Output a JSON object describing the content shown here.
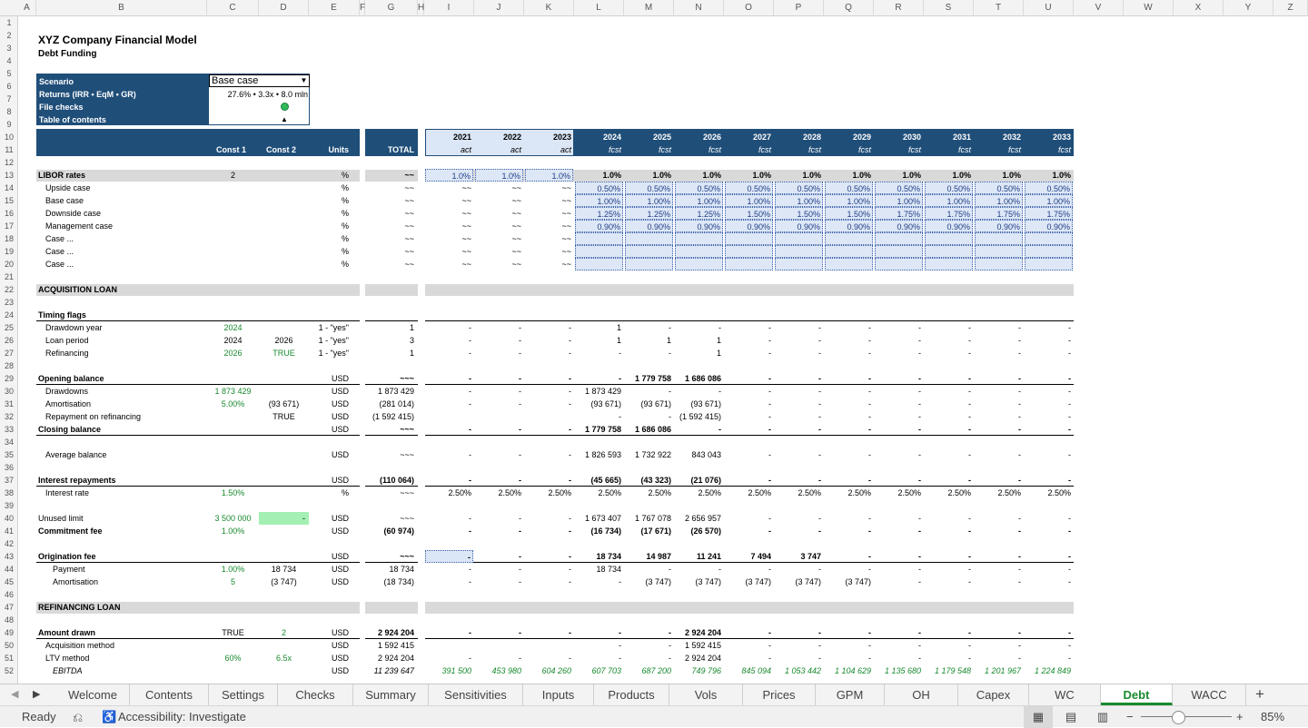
{
  "columns": [
    "A",
    "B",
    "C",
    "D",
    "E",
    "F",
    "G",
    "H",
    "I",
    "J",
    "K",
    "L",
    "M",
    "N",
    "O",
    "P",
    "Q",
    "R",
    "S",
    "T",
    "U",
    "V",
    "W",
    "X",
    "Y",
    "Z"
  ],
  "title": "XYZ Company Financial Model",
  "subtitle": "Debt Funding",
  "panel": {
    "scenario_label": "Scenario",
    "scenario_value": "Base case",
    "returns_label": "Returns (IRR • EqM • GR)",
    "returns_value": "27.6% • 3.3x • 8.0 mln",
    "checks_label": "File checks",
    "toc_label": "Table of contents",
    "toc_glyph": "▲"
  },
  "header": {
    "const1": "Const 1",
    "const2": "Const 2",
    "units": "Units",
    "total": "TOTAL",
    "years": [
      "2021",
      "2022",
      "2023",
      "2024",
      "2025",
      "2026",
      "2027",
      "2028",
      "2029",
      "2030",
      "2031",
      "2032",
      "2033"
    ],
    "phases": [
      "act",
      "act",
      "act",
      "fcst",
      "fcst",
      "fcst",
      "fcst",
      "fcst",
      "fcst",
      "fcst",
      "fcst",
      "fcst",
      "fcst"
    ]
  },
  "rows": [
    {
      "r": 13,
      "label": "LIBOR rates",
      "bold": true,
      "gray": true,
      "C": "2",
      "E": "%",
      "G": "~~",
      "vals": [
        "1.0%",
        "1.0%",
        "1.0%",
        "1.0%",
        "1.0%",
        "1.0%",
        "1.0%",
        "1.0%",
        "1.0%",
        "1.0%",
        "1.0%",
        "1.0%",
        "1.0%"
      ],
      "dotIdx": [
        0,
        1,
        2
      ]
    },
    {
      "r": 14,
      "label": "Upside case",
      "indent": 1,
      "E": "%",
      "G": "~~",
      "vals": [
        "~~",
        "~~",
        "~~",
        "0.50%",
        "0.50%",
        "0.50%",
        "0.50%",
        "0.50%",
        "0.50%",
        "0.50%",
        "0.50%",
        "0.50%",
        "0.50%"
      ],
      "dotFrom": 3
    },
    {
      "r": 15,
      "label": "Base case",
      "indent": 1,
      "E": "%",
      "G": "~~",
      "vals": [
        "~~",
        "~~",
        "~~",
        "1.00%",
        "1.00%",
        "1.00%",
        "1.00%",
        "1.00%",
        "1.00%",
        "1.00%",
        "1.00%",
        "1.00%",
        "1.00%"
      ],
      "dotFrom": 3
    },
    {
      "r": 16,
      "label": "Downside case",
      "indent": 1,
      "E": "%",
      "G": "~~",
      "vals": [
        "~~",
        "~~",
        "~~",
        "1.25%",
        "1.25%",
        "1.25%",
        "1.50%",
        "1.50%",
        "1.50%",
        "1.75%",
        "1.75%",
        "1.75%",
        "1.75%"
      ],
      "dotFrom": 3
    },
    {
      "r": 17,
      "label": "Management case",
      "indent": 1,
      "E": "%",
      "G": "~~",
      "vals": [
        "~~",
        "~~",
        "~~",
        "0.90%",
        "0.90%",
        "0.90%",
        "0.90%",
        "0.90%",
        "0.90%",
        "0.90%",
        "0.90%",
        "0.90%",
        "0.90%"
      ],
      "dotFrom": 3
    },
    {
      "r": 18,
      "label": "Case ...",
      "indent": 1,
      "E": "%",
      "G": "~~",
      "vals": [
        "~~",
        "~~",
        "~~",
        "",
        "",
        "",
        "",
        "",
        "",
        "",
        "",
        "",
        ""
      ],
      "dotFrom": 3
    },
    {
      "r": 19,
      "label": "Case ...",
      "indent": 1,
      "E": "%",
      "G": "~~",
      "vals": [
        "~~",
        "~~",
        "~~",
        "",
        "",
        "",
        "",
        "",
        "",
        "",
        "",
        "",
        ""
      ],
      "dotFrom": 3
    },
    {
      "r": 20,
      "label": "Case ...",
      "indent": 1,
      "E": "%",
      "G": "~~",
      "vals": [
        "~~",
        "~~",
        "~~",
        "",
        "",
        "",
        "",
        "",
        "",
        "",
        "",
        "",
        ""
      ],
      "dotFrom": 3
    },
    {
      "r": 22,
      "label": "ACQUISITION LOAN",
      "bold": true,
      "section": true
    },
    {
      "r": 24,
      "label": "Timing flags",
      "bold": true,
      "topline": true
    },
    {
      "r": 25,
      "label": "Drawdown year",
      "indent": 1,
      "C": "2024",
      "Cg": true,
      "E": "1 - \"yes\"",
      "G": "1",
      "vals": [
        "-",
        "-",
        "-",
        "1",
        "-",
        "-",
        "-",
        "-",
        "-",
        "-",
        "-",
        "-",
        "-"
      ]
    },
    {
      "r": 26,
      "label": "Loan period",
      "indent": 1,
      "C": "2024",
      "D": "2026",
      "E": "1 - \"yes\"",
      "G": "3",
      "vals": [
        "-",
        "-",
        "-",
        "1",
        "1",
        "1",
        "-",
        "-",
        "-",
        "-",
        "-",
        "-",
        "-"
      ]
    },
    {
      "r": 27,
      "label": "Refinancing",
      "indent": 1,
      "C": "2026",
      "Cg": true,
      "D": "TRUE",
      "Dg": true,
      "E": "1 - \"yes\"",
      "G": "1",
      "vals": [
        "-",
        "-",
        "-",
        "-",
        "-",
        "1",
        "-",
        "-",
        "-",
        "-",
        "-",
        "-",
        "-"
      ]
    },
    {
      "r": 29,
      "label": "Opening balance",
      "bold": true,
      "topline": true,
      "E": "USD",
      "G": "~~~",
      "vals": [
        "-",
        "-",
        "-",
        "-",
        "1 779 758",
        "1 686 086",
        "-",
        "-",
        "-",
        "-",
        "-",
        "-",
        "-"
      ]
    },
    {
      "r": 30,
      "label": "Drawdowns",
      "indent": 1,
      "C": "1 873 429",
      "Cg": true,
      "E": "USD",
      "G": "1 873 429",
      "vals": [
        "-",
        "-",
        "-",
        "1 873 429",
        "-",
        "-",
        "-",
        "-",
        "-",
        "-",
        "-",
        "-",
        "-"
      ]
    },
    {
      "r": 31,
      "label": "Amortisation",
      "indent": 1,
      "C": "5.00%",
      "Cg": true,
      "D": "(93 671)",
      "E": "USD",
      "G": "(281 014)",
      "vals": [
        "-",
        "-",
        "-",
        "(93 671)",
        "(93 671)",
        "(93 671)",
        "-",
        "-",
        "-",
        "-",
        "-",
        "-",
        "-"
      ]
    },
    {
      "r": 32,
      "label": "Repayment on refinancing",
      "indent": 1,
      "D": "TRUE",
      "E": "USD",
      "G": "(1 592 415)",
      "vals": [
        "",
        "",
        "",
        "-",
        "-",
        "(1 592 415)",
        "-",
        "-",
        "-",
        "-",
        "-",
        "-",
        "-"
      ]
    },
    {
      "r": 33,
      "label": "Closing balance",
      "bold": true,
      "topline": true,
      "E": "USD",
      "G": "~~~",
      "vals": [
        "-",
        "-",
        "-",
        "1 779 758",
        "1 686 086",
        "-",
        "-",
        "-",
        "-",
        "-",
        "-",
        "-",
        "-"
      ]
    },
    {
      "r": 35,
      "label": "Average balance",
      "indent": 1,
      "E": "USD",
      "G": "~~~",
      "vals": [
        "-",
        "-",
        "-",
        "1 826 593",
        "1 732 922",
        "843 043",
        "-",
        "-",
        "-",
        "-",
        "-",
        "-",
        "-"
      ]
    },
    {
      "r": 37,
      "label": "Interest repayments",
      "bold": true,
      "topline": true,
      "E": "USD",
      "G": "(110 064)",
      "vals": [
        "-",
        "-",
        "-",
        "(45 665)",
        "(43 323)",
        "(21 076)",
        "-",
        "-",
        "-",
        "-",
        "-",
        "-",
        "-"
      ]
    },
    {
      "r": 38,
      "label": "Interest rate",
      "indent": 1,
      "C": "1.50%",
      "Cg": true,
      "E": "%",
      "G": "~~~",
      "vals": [
        "2.50%",
        "2.50%",
        "2.50%",
        "2.50%",
        "2.50%",
        "2.50%",
        "2.50%",
        "2.50%",
        "2.50%",
        "2.50%",
        "2.50%",
        "2.50%",
        "2.50%"
      ]
    },
    {
      "r": 40,
      "label": "Unused limit",
      "C": "3 500 000",
      "Cg": true,
      "D": "-",
      "Dbox": true,
      "E": "USD",
      "G": "~~~",
      "vals": [
        "-",
        "-",
        "-",
        "1 673 407",
        "1 767 078",
        "2 656 957",
        "-",
        "-",
        "-",
        "-",
        "-",
        "-",
        "-"
      ]
    },
    {
      "r": 41,
      "label": "Commitment fee",
      "bold": true,
      "C": "1.00%",
      "Cg": true,
      "E": "USD",
      "G": "(60 974)",
      "vals": [
        "-",
        "-",
        "-",
        "(16 734)",
        "(17 671)",
        "(26 570)",
        "-",
        "-",
        "-",
        "-",
        "-",
        "-",
        "-"
      ]
    },
    {
      "r": 43,
      "label": "Origination fee",
      "bold": true,
      "topline": true,
      "E": "USD",
      "G": "~~~",
      "vals": [
        "-",
        "-",
        "-",
        "18 734",
        "14 987",
        "11 241",
        "7 494",
        "3 747",
        "-",
        "-",
        "-",
        "-",
        "-"
      ],
      "sel": 0
    },
    {
      "r": 44,
      "label": "Payment",
      "indent": 2,
      "C": "1.00%",
      "Cg": true,
      "D": "18 734",
      "E": "USD",
      "G": "18 734",
      "vals": [
        "-",
        "-",
        "-",
        "18 734",
        "-",
        "-",
        "-",
        "-",
        "-",
        "-",
        "-",
        "-",
        "-"
      ]
    },
    {
      "r": 45,
      "label": "Amortisation",
      "indent": 2,
      "C": "5",
      "Cg": true,
      "D": "(3 747)",
      "E": "USD",
      "G": "(18 734)",
      "vals": [
        "-",
        "-",
        "-",
        "-",
        "(3 747)",
        "(3 747)",
        "(3 747)",
        "(3 747)",
        "(3 747)",
        "-",
        "-",
        "-",
        "-"
      ]
    },
    {
      "r": 47,
      "label": "REFINANCING LOAN",
      "bold": true,
      "section": true
    },
    {
      "r": 49,
      "label": "Amount drawn",
      "bold": true,
      "topline": true,
      "C": "TRUE",
      "D": "2",
      "Dg": true,
      "E": "USD",
      "G": "2 924 204",
      "vals": [
        "-",
        "-",
        "-",
        "-",
        "-",
        "2 924 204",
        "-",
        "-",
        "-",
        "-",
        "-",
        "-",
        "-"
      ]
    },
    {
      "r": 50,
      "label": "Acquisition method",
      "indent": 1,
      "E": "USD",
      "G": "1 592 415",
      "vals": [
        "",
        "",
        "",
        "-",
        "-",
        "1 592 415",
        "-",
        "-",
        "-",
        "-",
        "-",
        "-",
        "-"
      ]
    },
    {
      "r": 51,
      "label": "LTV method",
      "indent": 1,
      "C": "60%",
      "Cg": true,
      "D": "6.5x",
      "Dg": true,
      "E": "USD",
      "G": "2 924 204",
      "vals": [
        "-",
        "-",
        "-",
        "-",
        "-",
        "2 924 204",
        "-",
        "-",
        "-",
        "-",
        "-",
        "-",
        "-"
      ]
    },
    {
      "r": 52,
      "label": "EBITDA",
      "indent": 2,
      "italic": true,
      "E": "USD",
      "G": "11 239 647",
      "vals": [
        "391 500",
        "453 980",
        "604 260",
        "607 703",
        "687 200",
        "749 796",
        "845 094",
        "1 053 442",
        "1 104 629",
        "1 135 680",
        "1 179 548",
        "1 201 967",
        "1 224 849"
      ],
      "greenVals": true
    }
  ],
  "tabs": [
    "Welcome",
    "Contents",
    "Settings",
    "Checks",
    "Summary",
    "Sensitivities",
    "Inputs",
    "Products",
    "Vols",
    "Prices",
    "GPM",
    "OH",
    "Capex",
    "WC",
    "Debt",
    "WACC"
  ],
  "active_tab": "Debt",
  "status": {
    "ready": "Ready",
    "accessibility": "Accessibility: Investigate",
    "zoom": "85%"
  }
}
